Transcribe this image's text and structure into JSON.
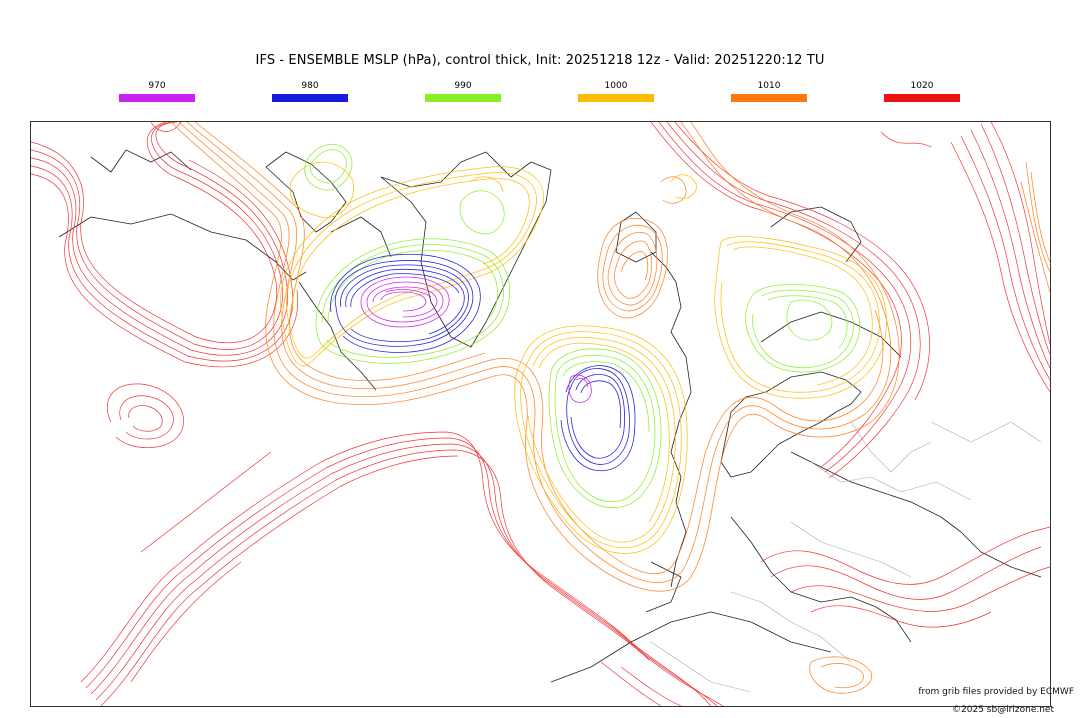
{
  "title": "IFS - ENSEMBLE MSLP (hPa), control thick, Init: 20251218 12z - Valid: 20251220:12 TU",
  "legend": [
    {
      "label": "970",
      "color": "#cc22ee"
    },
    {
      "label": "980",
      "color": "#1a1adc"
    },
    {
      "label": "990",
      "color": "#88ee22"
    },
    {
      "label": "1000",
      "color": "#ffbb00"
    },
    {
      "label": "1010",
      "color": "#ff7711"
    },
    {
      "label": "1020",
      "color": "#ee1111"
    }
  ],
  "credits": {
    "line1": "from grib files provided by ECMWF",
    "line2": "©2025 sb@irizone.net"
  }
}
